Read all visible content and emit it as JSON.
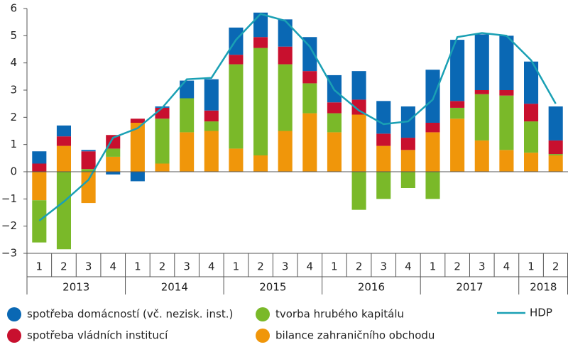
{
  "chart_data": {
    "type": "bar",
    "categories": [
      "1",
      "2",
      "3",
      "4",
      "1",
      "2",
      "3",
      "4",
      "1",
      "2",
      "3",
      "4",
      "1",
      "2",
      "3",
      "4",
      "1",
      "2",
      "3",
      "4",
      "1",
      "2"
    ],
    "years": [
      "2013",
      "2014",
      "2015",
      "2016",
      "2017",
      "2018"
    ],
    "stacked": true,
    "series": [
      {
        "name": "bilance zahraničního obchodu",
        "color": "#f0960a",
        "values": [
          -1.05,
          0.95,
          -1.15,
          0.55,
          1.8,
          0.3,
          1.45,
          1.5,
          0.85,
          0.6,
          1.5,
          2.15,
          1.45,
          2.1,
          0.95,
          0.8,
          1.45,
          1.95,
          1.15,
          0.8,
          0.7,
          0.6
        ]
      },
      {
        "name": "tvorba hrubého kapitálu",
        "color": "#7ab929",
        "values": [
          -1.55,
          -2.85,
          0.1,
          0.3,
          0,
          1.65,
          1.25,
          0.35,
          3.1,
          3.95,
          2.45,
          1.1,
          0.7,
          -1.4,
          -1.0,
          -0.6,
          -1.0,
          0.4,
          1.7,
          2.0,
          1.15,
          0.05
        ]
      },
      {
        "name": "spotřeba vládních institucí",
        "color": "#c8102e",
        "values": [
          0.3,
          0.35,
          0.65,
          0.5,
          0.15,
          0.4,
          0,
          0.4,
          0.35,
          0.4,
          0.65,
          0.45,
          0.4,
          0.55,
          0.45,
          0.45,
          0.35,
          0.25,
          0.15,
          0.2,
          0.65,
          0.5
        ]
      },
      {
        "name": "spotřeba domácností (vč. nezisk. inst.)",
        "color": "#0a68b4",
        "values": [
          0.45,
          0.4,
          0.05,
          -0.1,
          -0.35,
          0.05,
          0.65,
          1.15,
          1.0,
          0.9,
          1.0,
          1.25,
          1.0,
          1.05,
          1.2,
          1.15,
          1.95,
          2.25,
          2.05,
          2.0,
          1.55,
          1.25
        ]
      },
      {
        "name": "HDP",
        "type": "line",
        "color": "#1aa0b4",
        "values": [
          -1.8,
          -1.1,
          -0.3,
          1.25,
          1.6,
          2.35,
          3.4,
          3.45,
          4.85,
          5.8,
          5.55,
          4.6,
          3.0,
          2.25,
          1.75,
          1.85,
          2.65,
          4.95,
          5.1,
          5.0,
          4.1,
          2.5
        ]
      }
    ],
    "ylim": [
      -3,
      6
    ],
    "yticks": [
      {
        "value": -3,
        "label": "−3"
      },
      {
        "value": -2,
        "label": "−2"
      },
      {
        "value": -1,
        "label": "−1"
      },
      0,
      1,
      2,
      3,
      4,
      5,
      6
    ]
  }
}
